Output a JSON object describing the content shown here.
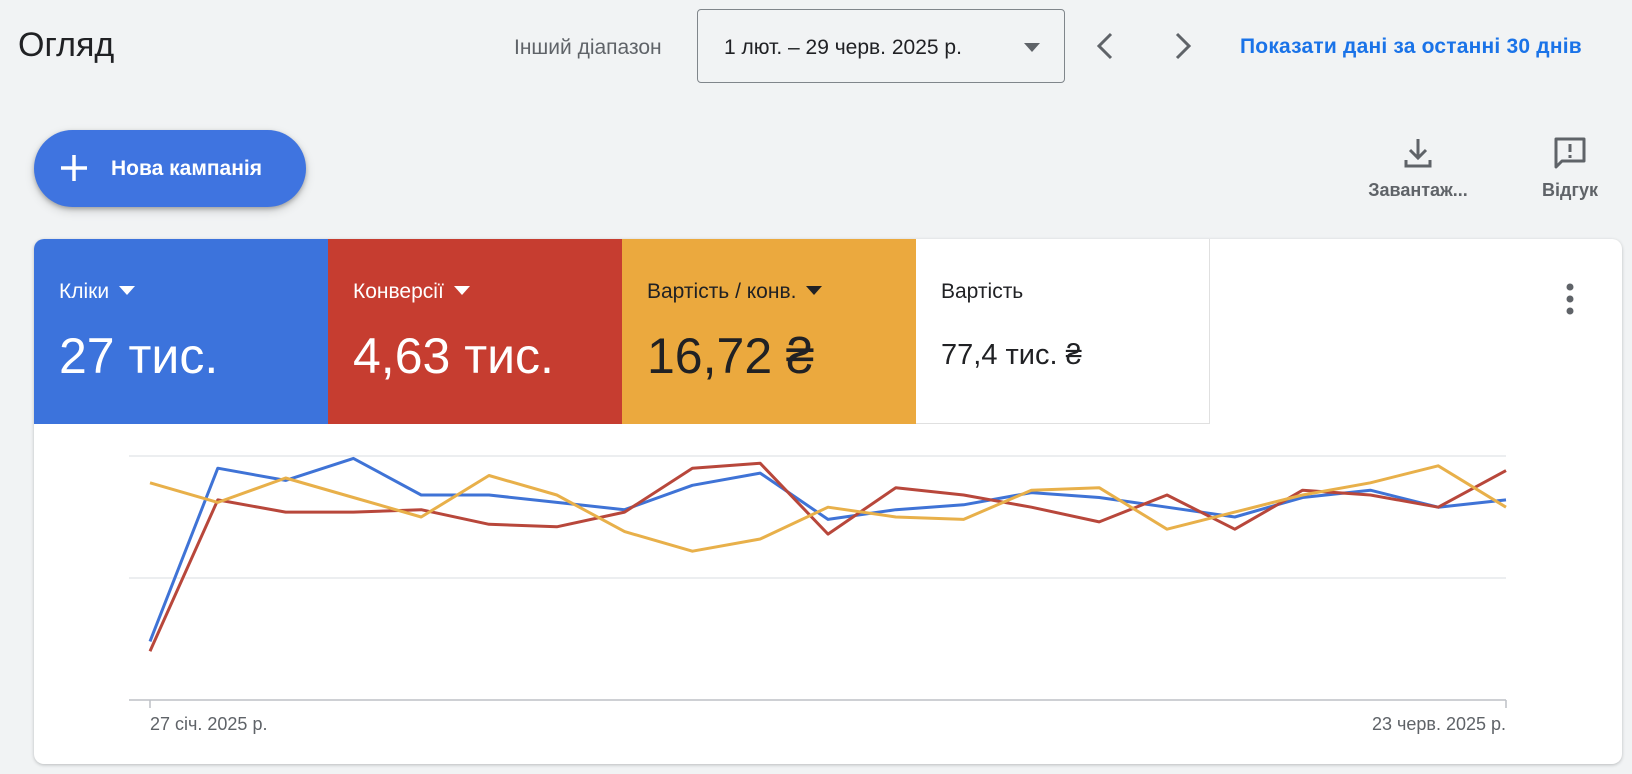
{
  "header": {
    "title": "Огляд",
    "range_label": "Інший діапазон",
    "date_range": "1 лют. – 29 черв. 2025 р.",
    "prev_icon": "chevron-left-icon",
    "next_icon": "chevron-right-icon",
    "last30_link": "Показати дані за останні 30 днів"
  },
  "toolbar": {
    "new_campaign_label": "Нова кампанія",
    "download_label": "Завантаж...",
    "feedback_label": "Відгук"
  },
  "metrics": [
    {
      "name": "Кліки",
      "value": "27 тис.",
      "color": "#3c73dc"
    },
    {
      "name": "Конверсії",
      "value": "4,63 тис.",
      "color": "#c63d30"
    },
    {
      "name": "Вартість / конв.",
      "value": "16,72 ₴",
      "color": "#eba93e"
    },
    {
      "name": "Вартість",
      "value": "77,4 тис. ₴"
    }
  ],
  "chart_data": {
    "type": "line",
    "x_start_label": "27 січ. 2025 р.",
    "x_end_label": "23 черв. 2025 р.",
    "y_axis_labels_shown": false,
    "grid": true,
    "series": [
      {
        "color": "#3f73d6",
        "values": [
          0.24,
          0.95,
          0.9,
          0.99,
          0.84,
          0.84,
          0.81,
          0.78,
          0.88,
          0.93,
          0.74,
          0.78,
          0.8,
          0.85,
          0.83,
          0.79,
          0.75,
          0.83,
          0.86,
          0.79,
          0.82
        ]
      },
      {
        "color": "#b8473b",
        "values": [
          0.2,
          0.82,
          0.77,
          0.77,
          0.78,
          0.72,
          0.71,
          0.77,
          0.95,
          0.97,
          0.68,
          0.87,
          0.84,
          0.79,
          0.73,
          0.84,
          0.7,
          0.86,
          0.84,
          0.79,
          0.94
        ]
      },
      {
        "color": "#e8b04a",
        "values": [
          0.89,
          0.81,
          0.91,
          0.83,
          0.75,
          0.92,
          0.84,
          0.69,
          0.61,
          0.66,
          0.79,
          0.75,
          0.74,
          0.86,
          0.87,
          0.7,
          0.77,
          0.84,
          0.89,
          0.96,
          0.79
        ]
      }
    ]
  }
}
